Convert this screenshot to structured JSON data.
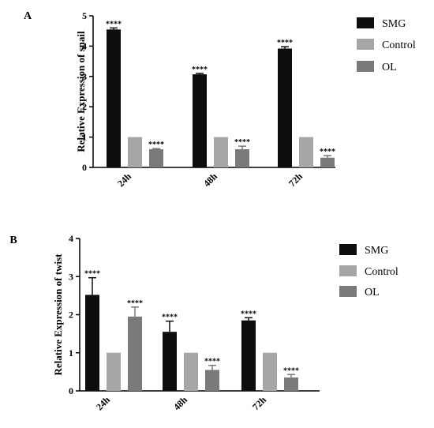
{
  "colors": {
    "SMG": "#0d0d0d",
    "Control": "#a6a6a6",
    "OL": "#7a7a7a"
  },
  "chart_data": [
    {
      "type": "bar",
      "panel_label": "A",
      "ylabel": "Relative Expression of snail",
      "ylim": [
        0,
        5
      ],
      "yticks": [
        "0",
        "1",
        "2",
        "3",
        "4",
        "5"
      ],
      "categories": [
        "24h",
        "48h",
        "72h"
      ],
      "legend": "right",
      "series": [
        {
          "name": "SMG",
          "values": [
            4.55,
            3.07,
            3.92
          ],
          "errors": [
            0.05,
            0.03,
            0.06
          ],
          "annotations": [
            "****",
            "****",
            "****"
          ]
        },
        {
          "name": "Control",
          "values": [
            1.0,
            1.0,
            1.0
          ],
          "errors": [
            0,
            0,
            0
          ],
          "annotations": [
            "",
            "",
            ""
          ]
        },
        {
          "name": "OL",
          "values": [
            0.6,
            0.6,
            0.32
          ],
          "errors": [
            0.02,
            0.1,
            0.07
          ],
          "annotations": [
            "****",
            "****",
            "****"
          ]
        }
      ]
    },
    {
      "type": "bar",
      "panel_label": "B",
      "ylabel": "Relative Expression of twist",
      "ylim": [
        0,
        4
      ],
      "yticks": [
        "0",
        "1",
        "2",
        "3",
        "4"
      ],
      "categories": [
        "24h",
        "48h",
        "72h"
      ],
      "legend": "right",
      "series": [
        {
          "name": "SMG",
          "values": [
            2.52,
            1.55,
            1.85
          ],
          "errors": [
            0.45,
            0.28,
            0.07
          ],
          "annotations": [
            "****",
            "****",
            "****"
          ]
        },
        {
          "name": "Control",
          "values": [
            1.0,
            1.0,
            1.0
          ],
          "errors": [
            0,
            0,
            0
          ],
          "annotations": [
            "",
            "",
            ""
          ]
        },
        {
          "name": "OL",
          "values": [
            1.95,
            0.55,
            0.35
          ],
          "errors": [
            0.25,
            0.12,
            0.08
          ],
          "annotations": [
            "****",
            "****",
            "****"
          ]
        }
      ]
    }
  ]
}
